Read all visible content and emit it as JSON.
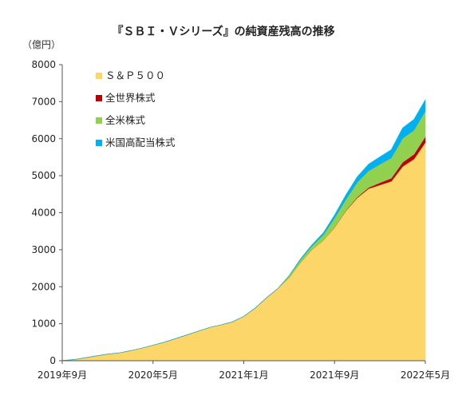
{
  "chart_data": {
    "type": "area",
    "title": "『ＳＢＩ・Ｖシリーズ』の純資産残高の推移",
    "unit_label": "（億円）",
    "ylim": [
      0,
      8000
    ],
    "yticks": [
      0,
      1000,
      2000,
      3000,
      4000,
      5000,
      6000,
      7000,
      8000
    ],
    "xlim": [
      0,
      32
    ],
    "xticks": [
      {
        "x": 0,
        "label": "2019年9月"
      },
      {
        "x": 8,
        "label": "2020年5月"
      },
      {
        "x": 16,
        "label": "2021年1月"
      },
      {
        "x": 24,
        "label": "2021年9月"
      },
      {
        "x": 32,
        "label": "2022年5月"
      }
    ],
    "stacked": true,
    "legend_position": "top-left",
    "x": [
      0,
      1,
      2,
      3,
      4,
      5,
      6,
      7,
      8,
      9,
      10,
      11,
      12,
      13,
      14,
      15,
      16,
      17,
      18,
      19,
      20,
      21,
      22,
      23,
      24,
      25,
      26,
      27,
      28,
      29,
      30,
      31,
      32
    ],
    "series": [
      {
        "name": "Ｓ＆Ｐ５００",
        "color": "#FCD668",
        "values": [
          5,
          30,
          80,
          130,
          180,
          210,
          270,
          340,
          420,
          500,
          600,
          700,
          800,
          900,
          970,
          1050,
          1200,
          1420,
          1700,
          1950,
          2250,
          2650,
          3000,
          3250,
          3600,
          4050,
          4400,
          4650,
          4750,
          4850,
          5250,
          5450,
          5900
        ]
      },
      {
        "name": "全世界株式",
        "color": "#C00000",
        "values": [
          0,
          0,
          0,
          0,
          0,
          0,
          0,
          0,
          0,
          0,
          0,
          0,
          0,
          0,
          0,
          0,
          0,
          0,
          0,
          0,
          0,
          0,
          0,
          0,
          5,
          10,
          20,
          30,
          60,
          80,
          110,
          130,
          150
        ]
      },
      {
        "name": "全米株式",
        "color": "#92D050",
        "values": [
          0,
          0,
          0,
          0,
          0,
          0,
          0,
          0,
          0,
          0,
          0,
          0,
          0,
          0,
          0,
          0,
          0,
          0,
          0,
          0,
          50,
          80,
          100,
          150,
          250,
          300,
          400,
          450,
          500,
          550,
          650,
          650,
          700
        ]
      },
      {
        "name": "米国高配当株式",
        "color": "#00B0F0",
        "values": [
          0,
          0,
          0,
          0,
          0,
          0,
          0,
          0,
          0,
          0,
          0,
          0,
          0,
          0,
          0,
          0,
          0,
          0,
          0,
          0,
          0,
          20,
          30,
          50,
          80,
          120,
          150,
          180,
          200,
          220,
          280,
          290,
          300
        ]
      }
    ]
  }
}
